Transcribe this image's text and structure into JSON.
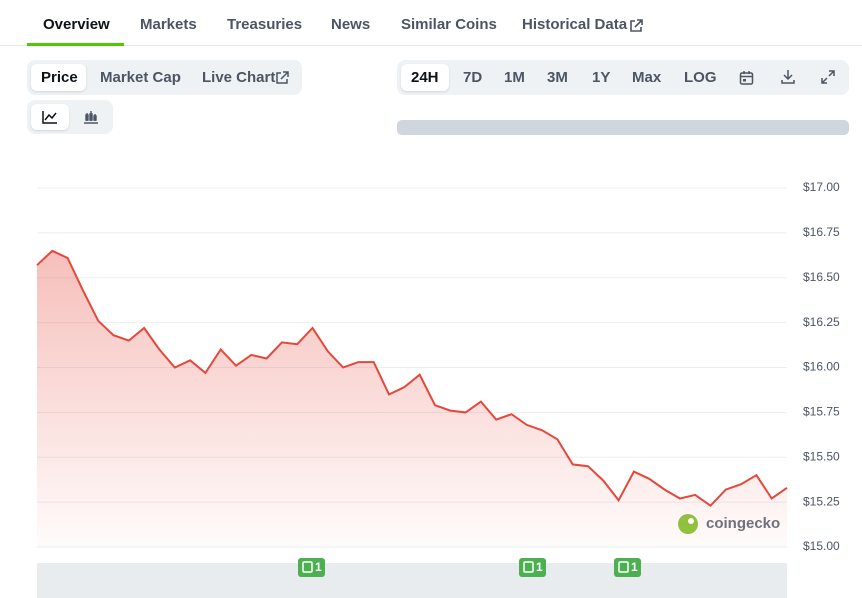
{
  "tabs": [
    "Overview",
    "Markets",
    "Treasuries",
    "News",
    "Similar Coins",
    "Historical Data"
  ],
  "chart_modes": [
    "Price",
    "Market Cap",
    "Live Chart"
  ],
  "ranges": [
    "24H",
    "7D",
    "1M",
    "3M",
    "1Y",
    "Max",
    "LOG"
  ],
  "watermark": "coingecko",
  "events": [
    "1",
    "1",
    "1"
  ],
  "chart_data": {
    "type": "line",
    "color": "#e5483b",
    "grid": true,
    "ylim": [
      15,
      17
    ],
    "yticks": [
      {
        "value": 15,
        "label": "$15.00"
      },
      {
        "value": 15.25,
        "label": "$15.25"
      },
      {
        "value": 15.5,
        "label": "$15.50"
      },
      {
        "value": 15.75,
        "label": "$15.75"
      },
      {
        "value": 16,
        "label": "$16.00"
      },
      {
        "value": 16.25,
        "label": "$16.25"
      },
      {
        "value": 16.5,
        "label": "$16.50"
      },
      {
        "value": 16.75,
        "label": "$16.75"
      },
      {
        "value": 17,
        "label": "$17.00"
      }
    ],
    "values": [
      16.57,
      16.65,
      16.61,
      16.43,
      16.26,
      16.18,
      16.15,
      16.22,
      16.1,
      16.0,
      16.04,
      15.97,
      16.1,
      16.01,
      16.07,
      16.05,
      16.14,
      16.13,
      16.22,
      16.09,
      16.0,
      16.03,
      16.03,
      15.85,
      15.89,
      15.96,
      15.79,
      15.76,
      15.75,
      15.81,
      15.71,
      15.74,
      15.68,
      15.65,
      15.6,
      15.46,
      15.45,
      15.37,
      15.26,
      15.42,
      15.38,
      15.32,
      15.27,
      15.29,
      15.23,
      15.32,
      15.35,
      15.4,
      15.27,
      15.33
    ]
  }
}
